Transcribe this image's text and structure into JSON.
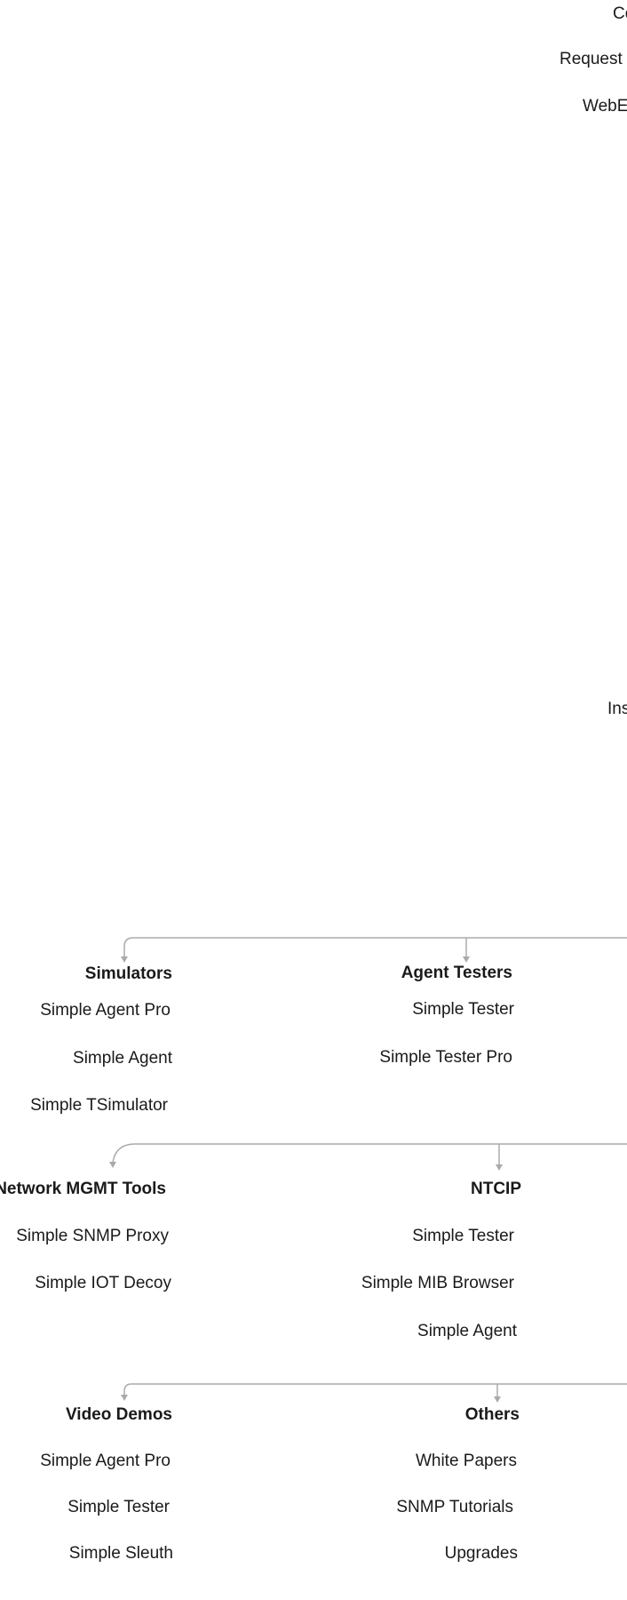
{
  "top_menu": {
    "item_1": "Co",
    "item_2": "Request",
    "item_3": "WebE",
    "item_4": "Ins"
  },
  "groups": {
    "simulators": {
      "heading": "Simulators",
      "items": [
        "Simple Agent Pro",
        "Simple Agent",
        "Simple TSimulator"
      ]
    },
    "agent_testers": {
      "heading": "Agent Testers",
      "items": [
        "Simple Tester",
        "Simple Tester Pro"
      ]
    },
    "network_mgmt_tools": {
      "heading": "Network MGMT Tools",
      "items": [
        "Simple SNMP Proxy",
        "Simple IOT Decoy"
      ]
    },
    "ntcip": {
      "heading": "NTCIP",
      "items": [
        "Simple Tester",
        "Simple MIB Browser",
        "Simple Agent"
      ]
    },
    "video_demos": {
      "heading": "Video Demos",
      "items": [
        "Simple Agent Pro",
        "Simple Tester",
        "Simple Sleuth"
      ]
    },
    "others": {
      "heading": "Others",
      "items": [
        "White Papers",
        "SNMP Tutorials",
        "Upgrades"
      ]
    }
  },
  "colors": {
    "text": "#1a1a1a",
    "connector": "#aaaaaa",
    "background": "#ffffff"
  }
}
